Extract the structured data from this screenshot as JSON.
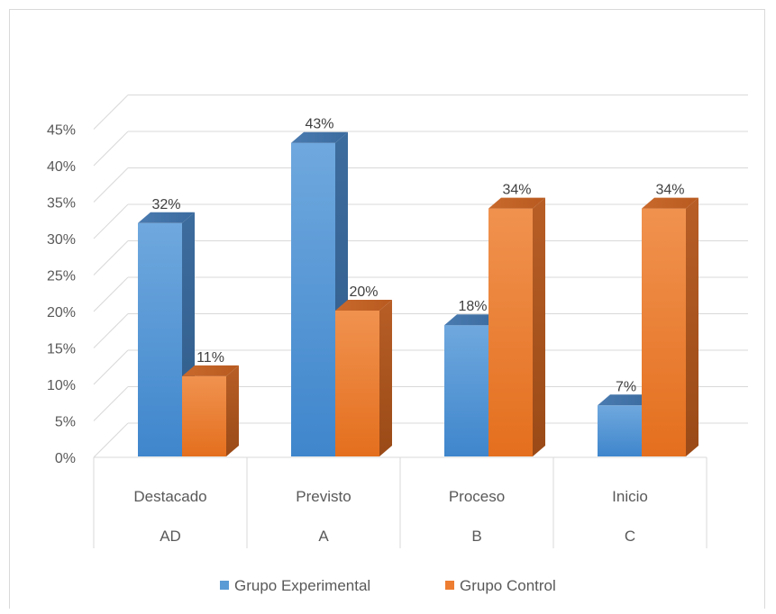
{
  "chart_data": {
    "type": "bar",
    "style": "3d-clustered-column",
    "categories": [
      {
        "name": "Destacado",
        "code": "AD"
      },
      {
        "name": "Previsto",
        "code": "A"
      },
      {
        "name": "Proceso",
        "code": "B"
      },
      {
        "name": "Inicio",
        "code": "C"
      }
    ],
    "series": [
      {
        "name": "Grupo Experimental",
        "values": [
          32,
          43,
          18,
          7
        ],
        "labels": [
          "32%",
          "43%",
          "18%",
          "7%"
        ],
        "color": "#5b9bd5"
      },
      {
        "name": "Grupo Control",
        "values": [
          11,
          20,
          34,
          34
        ],
        "labels": [
          "11%",
          "20%",
          "34%",
          "34%"
        ],
        "color": "#ed7d31"
      }
    ],
    "y_ticks": [
      "0%",
      "5%",
      "10%",
      "15%",
      "20%",
      "25%",
      "30%",
      "35%",
      "40%",
      "45%"
    ],
    "ylim": [
      0,
      45
    ],
    "y_unit": "%",
    "grid": true,
    "legend_position": "bottom"
  }
}
